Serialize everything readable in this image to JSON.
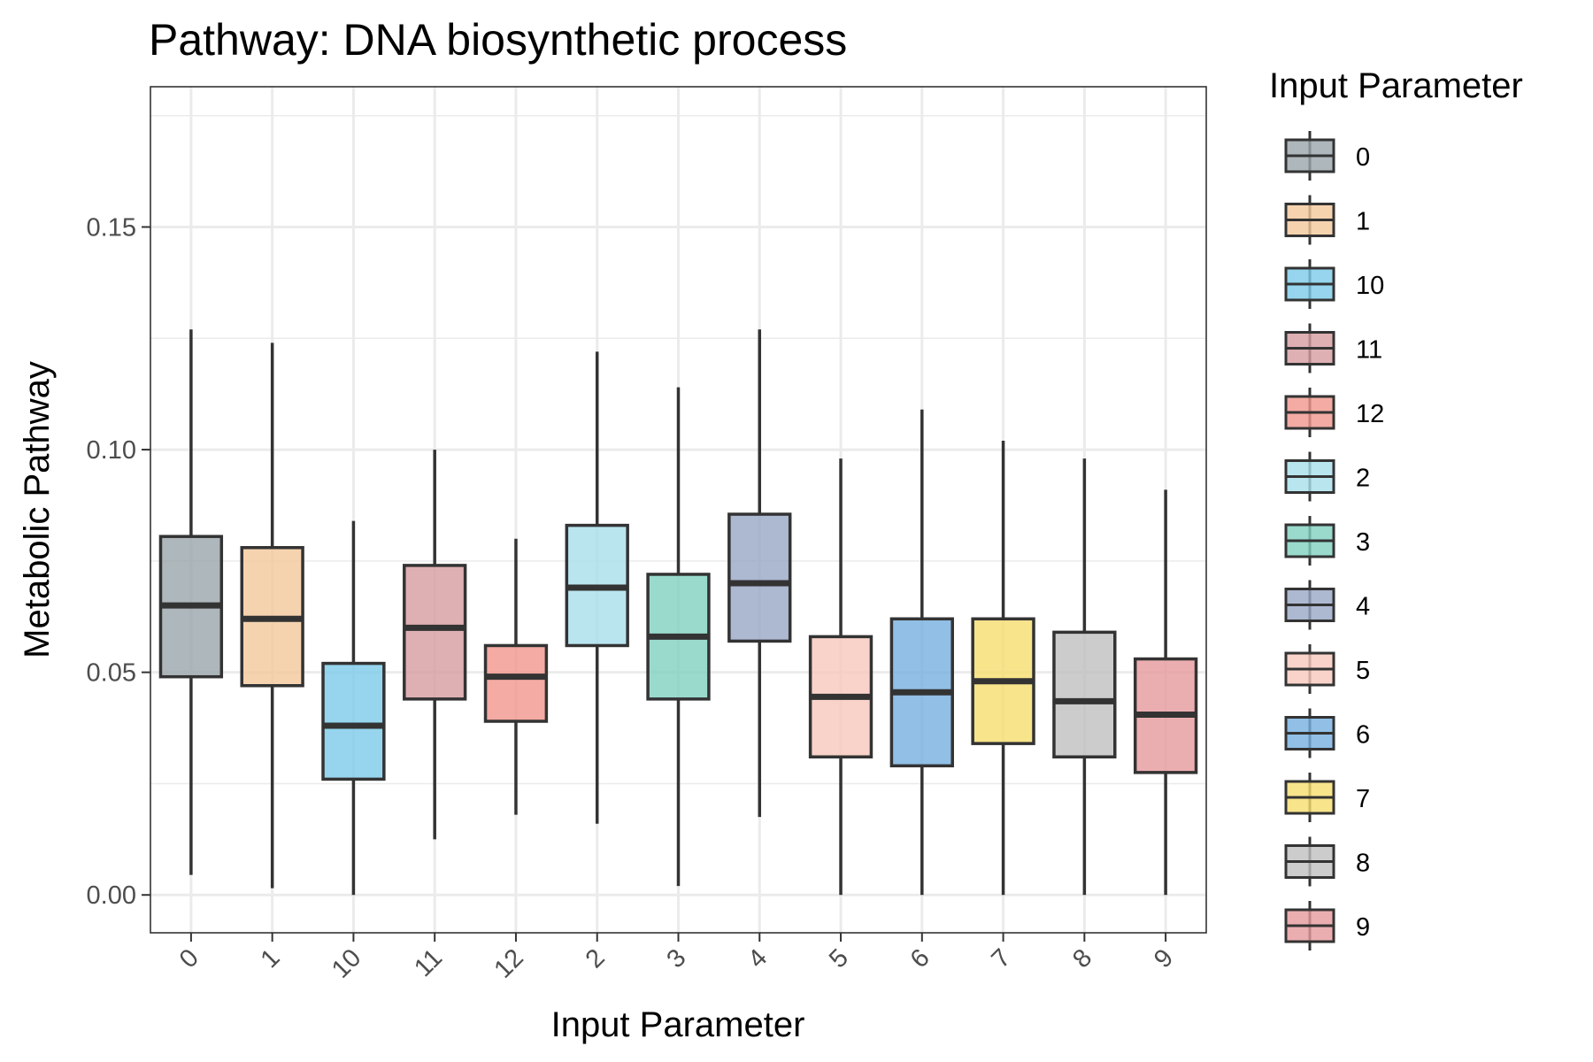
{
  "chart_data": {
    "type": "box",
    "title": "Pathway: DNA biosynthetic process",
    "xlabel": "Input Parameter",
    "ylabel": "Metabolic Pathway",
    "ylim": [
      -0.0085,
      0.1815
    ],
    "yticks": [
      0.0,
      0.05,
      0.1,
      0.15
    ],
    "ytick_labels": [
      "0.00",
      "0.05",
      "0.10",
      "0.15"
    ],
    "grid": true,
    "legend": {
      "title": "Input Parameter",
      "position": "right"
    },
    "categories": [
      "0",
      "1",
      "10",
      "11",
      "12",
      "2",
      "3",
      "4",
      "5",
      "6",
      "7",
      "8",
      "9"
    ],
    "boxes": [
      {
        "label": "0",
        "whisker_low": 0.0045,
        "q1": 0.049,
        "median": 0.065,
        "q3": 0.0805,
        "whisker_high": 0.127,
        "color": "#9aa5aa"
      },
      {
        "label": "1",
        "whisker_low": 0.0015,
        "q1": 0.047,
        "median": 0.062,
        "q3": 0.078,
        "whisker_high": 0.124,
        "color": "#f2c89b"
      },
      {
        "label": "10",
        "whisker_low": 0.0,
        "q1": 0.026,
        "median": 0.038,
        "q3": 0.052,
        "whisker_high": 0.084,
        "color": "#7ccbe8"
      },
      {
        "label": "11",
        "whisker_low": 0.0125,
        "q1": 0.044,
        "median": 0.06,
        "q3": 0.074,
        "whisker_high": 0.1,
        "color": "#d69ca0"
      },
      {
        "label": "12",
        "whisker_low": 0.018,
        "q1": 0.039,
        "median": 0.049,
        "q3": 0.056,
        "whisker_high": 0.08,
        "color": "#f0968c"
      },
      {
        "label": "2",
        "whisker_low": 0.016,
        "q1": 0.056,
        "median": 0.069,
        "q3": 0.083,
        "whisker_high": 0.122,
        "color": "#a8dfeb"
      },
      {
        "label": "3",
        "whisker_low": 0.002,
        "q1": 0.044,
        "median": 0.058,
        "q3": 0.072,
        "whisker_high": 0.114,
        "color": "#7fd1bf"
      },
      {
        "label": "4",
        "whisker_low": 0.0175,
        "q1": 0.057,
        "median": 0.07,
        "q3": 0.0855,
        "whisker_high": 0.127,
        "color": "#98a6c5"
      },
      {
        "label": "5",
        "whisker_low": 0.0,
        "q1": 0.031,
        "median": 0.0445,
        "q3": 0.058,
        "whisker_high": 0.098,
        "color": "#f7c8bc"
      },
      {
        "label": "6",
        "whisker_low": 0.0,
        "q1": 0.029,
        "median": 0.0455,
        "q3": 0.062,
        "whisker_high": 0.109,
        "color": "#76afe0"
      },
      {
        "label": "7",
        "whisker_low": 0.0,
        "q1": 0.034,
        "median": 0.048,
        "q3": 0.062,
        "whisker_high": 0.102,
        "color": "#f6dd6e"
      },
      {
        "label": "8",
        "whisker_low": 0.0,
        "q1": 0.031,
        "median": 0.0435,
        "q3": 0.059,
        "whisker_high": 0.098,
        "color": "#bfbfbf"
      },
      {
        "label": "9",
        "whisker_low": 0.0,
        "q1": 0.0275,
        "median": 0.0405,
        "q3": 0.053,
        "whisker_high": 0.091,
        "color": "#e69a9c"
      }
    ]
  }
}
